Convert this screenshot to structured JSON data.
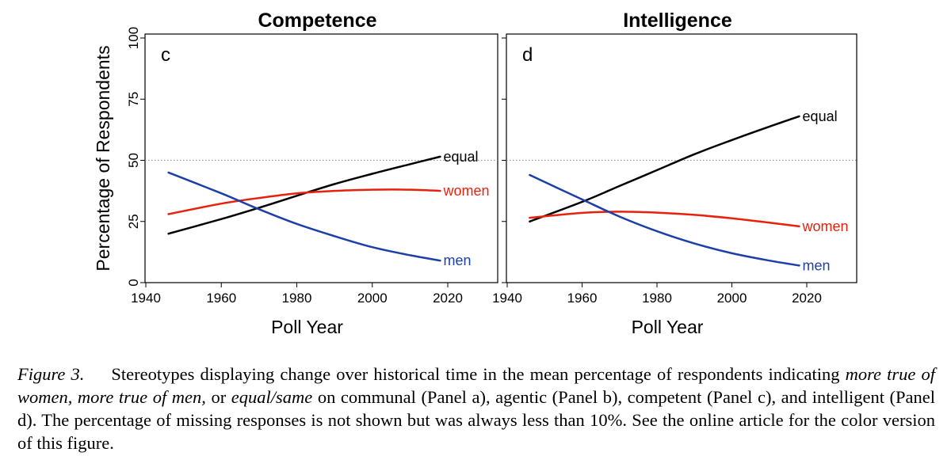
{
  "chart_data": [
    {
      "type": "line",
      "title": "Competence",
      "panel_label": "c",
      "xlabel": "Poll Year",
      "ylabel": "Percentage of Respondents",
      "xlim": [
        1940,
        2020
      ],
      "ylim": [
        0,
        100
      ],
      "xticks": [
        1940,
        1960,
        1980,
        2000,
        2020
      ],
      "yticks": [
        0,
        25,
        50,
        75,
        100
      ],
      "reference_line": 50,
      "legend": "none",
      "grid": false,
      "series": [
        {
          "name": "equal",
          "color": "#000000",
          "x": [
            1946,
            1960,
            1970,
            1980,
            1990,
            2000,
            2010,
            2018
          ],
          "y": [
            20,
            26,
            30.6,
            35.5,
            40.3,
            44.5,
            48.4,
            51.5
          ]
        },
        {
          "name": "women",
          "color": "#e8210c",
          "x": [
            1946,
            1960,
            1970,
            1980,
            1990,
            2000,
            2010,
            2018
          ],
          "y": [
            28,
            32.3,
            34.6,
            36.5,
            37.5,
            38,
            38,
            37.5
          ]
        },
        {
          "name": "men",
          "color": "#1c3fa8",
          "x": [
            1946,
            1960,
            1970,
            1980,
            1990,
            2000,
            2010,
            2018
          ],
          "y": [
            45,
            36.5,
            30,
            24,
            19,
            14.5,
            11.2,
            9
          ]
        }
      ]
    },
    {
      "type": "line",
      "title": "Intelligence",
      "panel_label": "d",
      "xlabel": "Poll Year",
      "ylabel": "",
      "xlim": [
        1940,
        2020
      ],
      "ylim": [
        0,
        100
      ],
      "xticks": [
        1940,
        1960,
        1980,
        2000,
        2020
      ],
      "yticks": [
        0,
        25,
        50,
        75,
        100
      ],
      "reference_line": 50,
      "legend": "none",
      "grid": false,
      "series": [
        {
          "name": "equal",
          "color": "#000000",
          "x": [
            1946,
            1960,
            1970,
            1980,
            1990,
            2000,
            2010,
            2018
          ],
          "y": [
            25,
            33,
            39.5,
            46,
            52.5,
            58.3,
            63.8,
            68
          ]
        },
        {
          "name": "women",
          "color": "#e8210c",
          "x": [
            1946,
            1960,
            1970,
            1980,
            1990,
            2000,
            2010,
            2018
          ],
          "y": [
            26.5,
            28.5,
            29,
            28.6,
            27.7,
            26.3,
            24.5,
            23
          ]
        },
        {
          "name": "men",
          "color": "#1c3fa8",
          "x": [
            1946,
            1960,
            1970,
            1980,
            1990,
            2000,
            2010,
            2018
          ],
          "y": [
            44,
            34,
            27,
            21,
            16,
            12,
            9,
            7
          ]
        }
      ]
    }
  ],
  "caption": {
    "label": "Figure 3.",
    "p1": "Stereotypes displaying change over historical time in the mean percentage of respondents indicating ",
    "i1": "more true of women, more true of men,",
    "p2": " or ",
    "i2": "equal/same",
    "p3": " on communal (Panel a), agentic (Panel b), competent (Panel c), and intelligent (Panel d). The percentage of missing responses is not shown but was always less than 10%. See the online article for the color version of this figure."
  }
}
